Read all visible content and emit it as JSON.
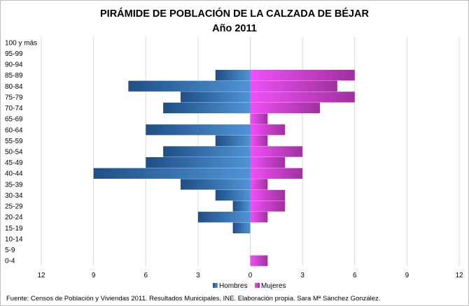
{
  "chart_data": {
    "type": "bar",
    "orientation": "horizontal-pyramid",
    "title": "PIRÁMIDE DE POBLACIÓN DE LA CALZADA DE BÉJAR",
    "subtitle": "Año 2011",
    "categories": [
      "100 y más",
      "95-99",
      "90-94",
      "85-89",
      "80-84",
      "75-79",
      "70-74",
      "65-69",
      "60-64",
      "55-59",
      "50-54",
      "45-49",
      "40-44",
      "35-39",
      "30-34",
      "25-29",
      "20-24",
      "15-19",
      "10-14",
      "5-9",
      "0-4"
    ],
    "series": [
      {
        "name": "Hombres",
        "values": [
          0,
          0,
          0,
          2,
          7,
          4,
          5,
          0,
          6,
          2,
          5,
          6,
          9,
          4,
          2,
          1,
          3,
          1,
          0,
          0,
          0
        ],
        "color": "#3f7fc1"
      },
      {
        "name": "Mujeres",
        "values": [
          0,
          0,
          0,
          6,
          5,
          6,
          4,
          1,
          2,
          1,
          3,
          2,
          3,
          1,
          2,
          2,
          1,
          0,
          0,
          0,
          1
        ],
        "color": "#e040e8"
      }
    ],
    "x_tick_labels": [
      "12",
      "9",
      "6",
      "3",
      "0",
      "3",
      "6",
      "9",
      "12"
    ],
    "xlim": [
      -12,
      12
    ],
    "grid": true,
    "legend_position": "bottom"
  },
  "source_note": "Fuente: Censos de Población y Viviendas 2011. Resultados Municipales. INE. Elaboración propia. Sara Mª Sánchez González."
}
